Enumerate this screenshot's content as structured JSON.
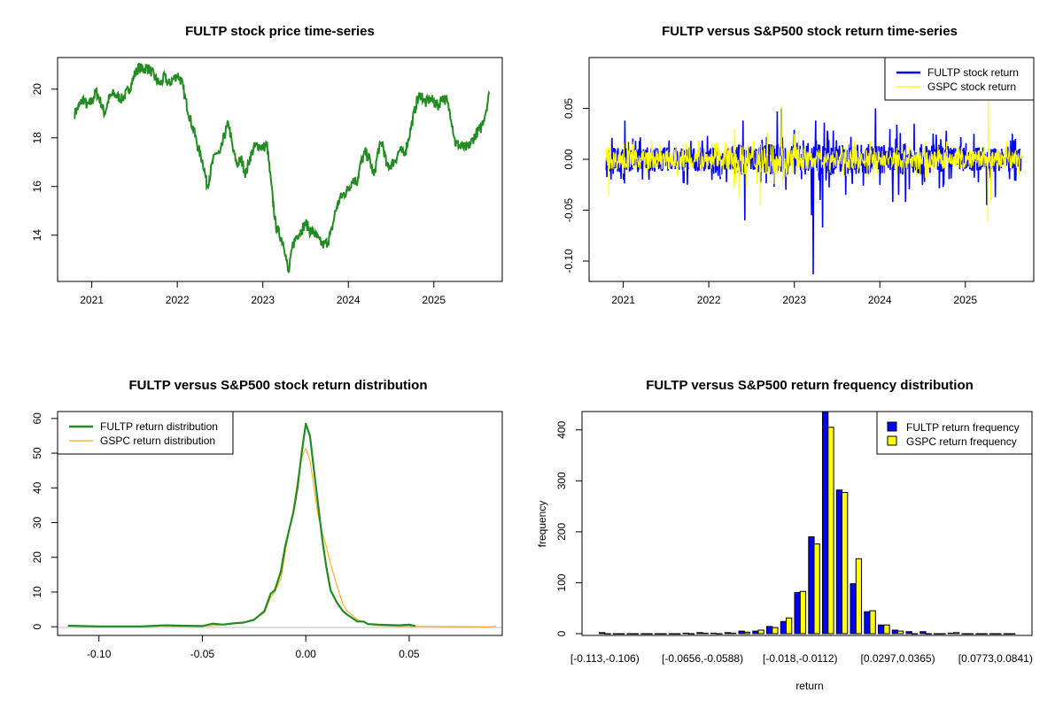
{
  "chart_data": [
    {
      "id": "price",
      "type": "line",
      "title": "FULTP stock price time-series",
      "xlabel": "",
      "ylabel": "",
      "xlim": [
        2020.6,
        2025.8
      ],
      "ylim": [
        12.1,
        21.3
      ],
      "x_ticks": [
        2021,
        2022,
        2023,
        2024,
        2025
      ],
      "x_tick_labels": [
        "2021",
        "2022",
        "2023",
        "2024",
        "2025"
      ],
      "y_ticks": [
        14,
        16,
        18,
        20
      ],
      "y_tick_labels": [
        "14",
        "16",
        "18",
        "20"
      ],
      "color": "#228B22",
      "series": [
        {
          "name": "FULTP price",
          "x": [
            2020.8,
            2020.85,
            2020.9,
            2020.95,
            2021.0,
            2021.05,
            2021.1,
            2021.15,
            2021.2,
            2021.25,
            2021.3,
            2021.35,
            2021.4,
            2021.45,
            2021.5,
            2021.55,
            2021.6,
            2021.65,
            2021.7,
            2021.75,
            2021.8,
            2021.85,
            2021.9,
            2021.95,
            2022.0,
            2022.05,
            2022.1,
            2022.15,
            2022.2,
            2022.25,
            2022.3,
            2022.35,
            2022.4,
            2022.45,
            2022.5,
            2022.55,
            2022.6,
            2022.65,
            2022.7,
            2022.75,
            2022.8,
            2022.85,
            2022.9,
            2022.95,
            2023.0,
            2023.05,
            2023.1,
            2023.15,
            2023.2,
            2023.25,
            2023.3,
            2023.35,
            2023.4,
            2023.45,
            2023.5,
            2023.55,
            2023.6,
            2023.65,
            2023.7,
            2023.75,
            2023.8,
            2023.85,
            2023.9,
            2023.95,
            2024.0,
            2024.05,
            2024.1,
            2024.15,
            2024.2,
            2024.25,
            2024.3,
            2024.35,
            2024.4,
            2024.45,
            2024.5,
            2024.55,
            2024.6,
            2024.65,
            2024.7,
            2024.75,
            2024.8,
            2024.85,
            2024.9,
            2024.95,
            2025.0,
            2025.05,
            2025.1,
            2025.15,
            2025.2,
            2025.25,
            2025.3,
            2025.35,
            2025.4,
            2025.45,
            2025.5,
            2025.55,
            2025.6,
            2025.65
          ],
          "y": [
            19.0,
            19.3,
            19.6,
            19.3,
            19.5,
            19.9,
            19.5,
            19.0,
            19.6,
            19.8,
            19.7,
            19.6,
            19.8,
            20.1,
            20.6,
            20.9,
            20.8,
            20.9,
            20.7,
            20.4,
            20.2,
            20.5,
            20.2,
            20.4,
            20.6,
            20.3,
            19.5,
            18.8,
            18.2,
            17.5,
            17.0,
            16.0,
            16.8,
            17.4,
            17.3,
            18.1,
            18.6,
            17.5,
            16.9,
            17.1,
            16.5,
            17.2,
            17.6,
            17.7,
            17.6,
            17.7,
            16.0,
            14.4,
            14.0,
            13.6,
            12.4,
            13.6,
            14.0,
            14.2,
            14.5,
            14.2,
            14.1,
            13.8,
            13.6,
            13.7,
            14.1,
            15.0,
            15.5,
            15.7,
            15.9,
            16.3,
            16.2,
            17.0,
            17.4,
            17.1,
            16.4,
            17.5,
            17.8,
            16.8,
            16.9,
            17.1,
            17.5,
            17.3,
            17.9,
            18.7,
            19.5,
            19.8,
            19.4,
            19.6,
            19.5,
            19.3,
            19.7,
            19.5,
            18.9,
            17.8,
            17.7,
            17.6,
            17.6,
            17.9,
            18.2,
            18.4,
            19.0,
            19.8
          ]
        }
      ]
    },
    {
      "id": "returns",
      "type": "line",
      "title": "FULTP versus S&P500 stock return time-series",
      "xlabel": "",
      "ylabel": "",
      "xlim": [
        2020.6,
        2025.8
      ],
      "ylim": [
        -0.12,
        0.1
      ],
      "x_ticks": [
        2021,
        2022,
        2023,
        2024,
        2025
      ],
      "x_tick_labels": [
        "2021",
        "2022",
        "2023",
        "2024",
        "2025"
      ],
      "y_ticks": [
        -0.1,
        -0.05,
        0.0,
        0.05
      ],
      "y_tick_labels": [
        "-0.10",
        "-0.05",
        "0.00",
        "0.05"
      ],
      "legend": {
        "position": "top-right",
        "entries": [
          "FULTP stock return",
          "GSPC stock return"
        ]
      },
      "series": [
        {
          "name": "FULTP stock return",
          "color": "#0000FF",
          "spikes": [
            [
              2021.02,
              0.038
            ],
            [
              2021.3,
              -0.02
            ],
            [
              2021.75,
              -0.025
            ],
            [
              2022.4,
              0.038
            ],
            [
              2022.42,
              -0.06
            ],
            [
              2022.8,
              0.047
            ],
            [
              2022.85,
              0.05
            ],
            [
              2022.9,
              -0.03
            ],
            [
              2023.0,
              0.029
            ],
            [
              2023.2,
              -0.055
            ],
            [
              2023.22,
              -0.113
            ],
            [
              2023.25,
              0.038
            ],
            [
              2023.3,
              -0.04
            ],
            [
              2023.33,
              -0.067
            ],
            [
              2023.35,
              0.036
            ],
            [
              2023.6,
              -0.035
            ],
            [
              2023.95,
              0.05
            ],
            [
              2024.0,
              -0.025
            ],
            [
              2024.15,
              -0.042
            ],
            [
              2024.2,
              0.034
            ],
            [
              2024.22,
              -0.035
            ],
            [
              2024.3,
              -0.042
            ],
            [
              2024.4,
              0.035
            ],
            [
              2024.5,
              -0.025
            ],
            [
              2025.1,
              0.025
            ],
            [
              2025.25,
              -0.045
            ],
            [
              2025.35,
              -0.037
            ],
            [
              2025.55,
              0.025
            ]
          ],
          "amplitude": 0.015
        },
        {
          "name": "GSPC stock return",
          "color": "#FFFF00",
          "spikes": [
            [
              2020.83,
              -0.036
            ],
            [
              2020.85,
              0.02
            ],
            [
              2022.3,
              0.03
            ],
            [
              2022.35,
              -0.037
            ],
            [
              2022.6,
              -0.045
            ],
            [
              2022.85,
              0.053
            ],
            [
              2023.0,
              0.025
            ],
            [
              2025.27,
              0.057
            ],
            [
              2025.26,
              -0.062
            ],
            [
              2025.3,
              -0.04
            ]
          ],
          "amplitude": 0.012
        }
      ]
    },
    {
      "id": "density",
      "type": "line",
      "title": "FULTP versus S&P500 stock return distribution",
      "xlabel": "",
      "ylabel": "",
      "xlim": [
        -0.12,
        0.095
      ],
      "ylim": [
        -2.5,
        62
      ],
      "x_ticks": [
        -0.1,
        -0.05,
        0.0,
        0.05
      ],
      "x_tick_labels": [
        "-0.10",
        "-0.05",
        "0.00",
        "0.05"
      ],
      "y_ticks": [
        0,
        10,
        20,
        30,
        40,
        50,
        60
      ],
      "y_tick_labels": [
        "0",
        "10",
        "20",
        "30",
        "40",
        "50",
        "60"
      ],
      "legend": {
        "position": "top-left",
        "entries": [
          "FULTP return distribution",
          "GSPC return distribution"
        ]
      },
      "series": [
        {
          "name": "FULTP return distribution",
          "color": "#228B22",
          "x": [
            -0.115,
            -0.1,
            -0.08,
            -0.068,
            -0.06,
            -0.05,
            -0.045,
            -0.04,
            -0.035,
            -0.03,
            -0.025,
            -0.02,
            -0.017,
            -0.015,
            -0.012,
            -0.01,
            -0.008,
            -0.006,
            -0.004,
            -0.002,
            0.0,
            0.002,
            0.004,
            0.006,
            0.008,
            0.01,
            0.012,
            0.015,
            0.018,
            0.02,
            0.025,
            0.028,
            0.03,
            0.035,
            0.04,
            0.045,
            0.05,
            0.053
          ],
          "y": [
            0.3,
            0.1,
            0.1,
            0.4,
            0.3,
            0.2,
            0.9,
            0.6,
            1.0,
            1.2,
            2.0,
            4.5,
            9.5,
            10.5,
            16.0,
            23.0,
            28.0,
            33.0,
            40.0,
            50.0,
            58.5,
            55.0,
            45.0,
            35.0,
            25.0,
            17.0,
            10.5,
            7.0,
            4.5,
            3.5,
            1.5,
            1.5,
            0.8,
            0.6,
            0.5,
            0.4,
            0.6,
            0.2
          ]
        },
        {
          "name": "GSPC return distribution",
          "color": "#FFA500",
          "x": [
            -0.065,
            -0.055,
            -0.05,
            -0.045,
            -0.04,
            -0.035,
            -0.03,
            -0.025,
            -0.02,
            -0.017,
            -0.015,
            -0.012,
            -0.01,
            -0.008,
            -0.006,
            -0.004,
            -0.002,
            0.0,
            0.002,
            0.004,
            0.006,
            0.008,
            0.01,
            0.012,
            0.015,
            0.018,
            0.02,
            0.025,
            0.03,
            0.035,
            0.045,
            0.056,
            0.09,
            0.092
          ],
          "y": [
            0.1,
            0.2,
            0.2,
            0.3,
            0.6,
            0.8,
            1.3,
            2.2,
            4.0,
            8.5,
            10.0,
            14.0,
            21.0,
            28.0,
            34.0,
            42.0,
            49.0,
            51.3,
            48.0,
            40.0,
            32.0,
            27.0,
            23.0,
            18.0,
            12.0,
            6.5,
            4.5,
            2.0,
            0.8,
            0.3,
            0.1,
            0.1,
            0.0,
            0.3
          ]
        }
      ]
    },
    {
      "id": "histogram",
      "type": "bar",
      "title": "FULTP versus S&P500 return frequency distribution",
      "xlabel": "return",
      "ylabel": "frequency",
      "ylim": [
        0,
        436
      ],
      "y_ticks": [
        0,
        100,
        200,
        300,
        400
      ],
      "y_tick_labels": [
        "0",
        "100",
        "200",
        "300",
        "400"
      ],
      "x_tick_labels": [
        "[-0.113,-0.106)",
        "[-0.0656,-0.0588)",
        "[-0.018,-0.0112)",
        "[0.0297,0.0365)",
        "[0.0773,0.0841)"
      ],
      "x_tick_bins": [
        0,
        7,
        14,
        21,
        28
      ],
      "legend": {
        "position": "top-right",
        "entries": [
          "FULTP return frequency",
          "GSPC return frequency"
        ]
      },
      "series": [
        {
          "name": "FULTP return frequency",
          "color": "#0000FF",
          "values": [
            2,
            0,
            0,
            0,
            0,
            0,
            1,
            2,
            1,
            2,
            5,
            5,
            14,
            24,
            81,
            190,
            436,
            282,
            98,
            43,
            17,
            7,
            4,
            4,
            0,
            1,
            0,
            0,
            0,
            0
          ]
        },
        {
          "name": "GSPC return frequency",
          "color": "#FFFF00",
          "values": [
            0,
            0,
            0,
            0,
            0,
            0,
            0,
            1,
            0,
            1,
            3,
            7,
            12,
            31,
            83,
            176,
            405,
            277,
            147,
            45,
            17,
            5,
            0,
            0,
            0,
            2,
            0,
            0,
            0,
            0
          ]
        }
      ]
    }
  ]
}
